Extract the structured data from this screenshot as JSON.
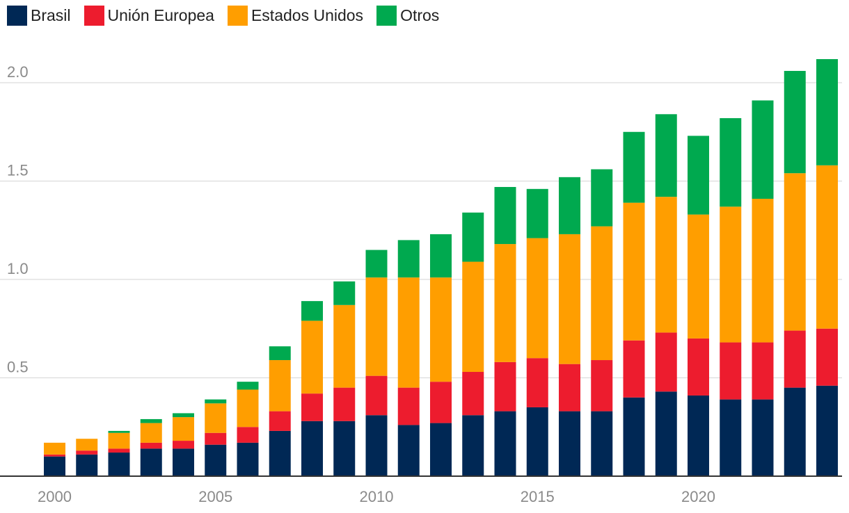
{
  "chart_data": {
    "type": "bar",
    "stacked": true,
    "categories": [
      2000,
      2001,
      2002,
      2003,
      2004,
      2005,
      2006,
      2007,
      2008,
      2009,
      2010,
      2011,
      2012,
      2013,
      2014,
      2015,
      2016,
      2017,
      2018,
      2019,
      2020,
      2021,
      2022,
      2023,
      2024
    ],
    "series": [
      {
        "name": "Brasil",
        "color": "#002855",
        "values": [
          0.1,
          0.11,
          0.12,
          0.14,
          0.14,
          0.16,
          0.17,
          0.23,
          0.28,
          0.28,
          0.31,
          0.26,
          0.27,
          0.31,
          0.33,
          0.35,
          0.33,
          0.33,
          0.4,
          0.43,
          0.41,
          0.39,
          0.39,
          0.45,
          0.46
        ]
      },
      {
        "name": "Unión Europea",
        "color": "#ED1C2E",
        "values": [
          0.01,
          0.02,
          0.02,
          0.03,
          0.04,
          0.06,
          0.08,
          0.1,
          0.14,
          0.17,
          0.2,
          0.19,
          0.21,
          0.22,
          0.25,
          0.25,
          0.24,
          0.26,
          0.29,
          0.3,
          0.29,
          0.29,
          0.29,
          0.29,
          0.29
        ]
      },
      {
        "name": "Estados Unidos",
        "color": "#FF9E00",
        "values": [
          0.06,
          0.06,
          0.08,
          0.1,
          0.12,
          0.15,
          0.19,
          0.26,
          0.37,
          0.42,
          0.5,
          0.56,
          0.53,
          0.56,
          0.6,
          0.61,
          0.66,
          0.68,
          0.7,
          0.69,
          0.63,
          0.69,
          0.73,
          0.8,
          0.83
        ]
      },
      {
        "name": "Otros",
        "color": "#00A94F",
        "values": [
          0.0,
          0.0,
          0.01,
          0.02,
          0.02,
          0.02,
          0.04,
          0.07,
          0.1,
          0.12,
          0.14,
          0.19,
          0.22,
          0.25,
          0.29,
          0.25,
          0.29,
          0.29,
          0.36,
          0.42,
          0.4,
          0.45,
          0.5,
          0.52,
          0.54
        ]
      }
    ],
    "ylim": [
      0,
      2.2
    ],
    "yticks": [
      0.5,
      1.0,
      1.5,
      2.0
    ],
    "ytick_labels": [
      "0.5",
      "1.0",
      "1.5",
      "2.0"
    ],
    "xtick_labels": [
      "2000",
      "2005",
      "2010",
      "2015",
      "2020"
    ],
    "grid": true,
    "legend_position": "top-left",
    "title": "",
    "xlabel": "",
    "ylabel": ""
  }
}
